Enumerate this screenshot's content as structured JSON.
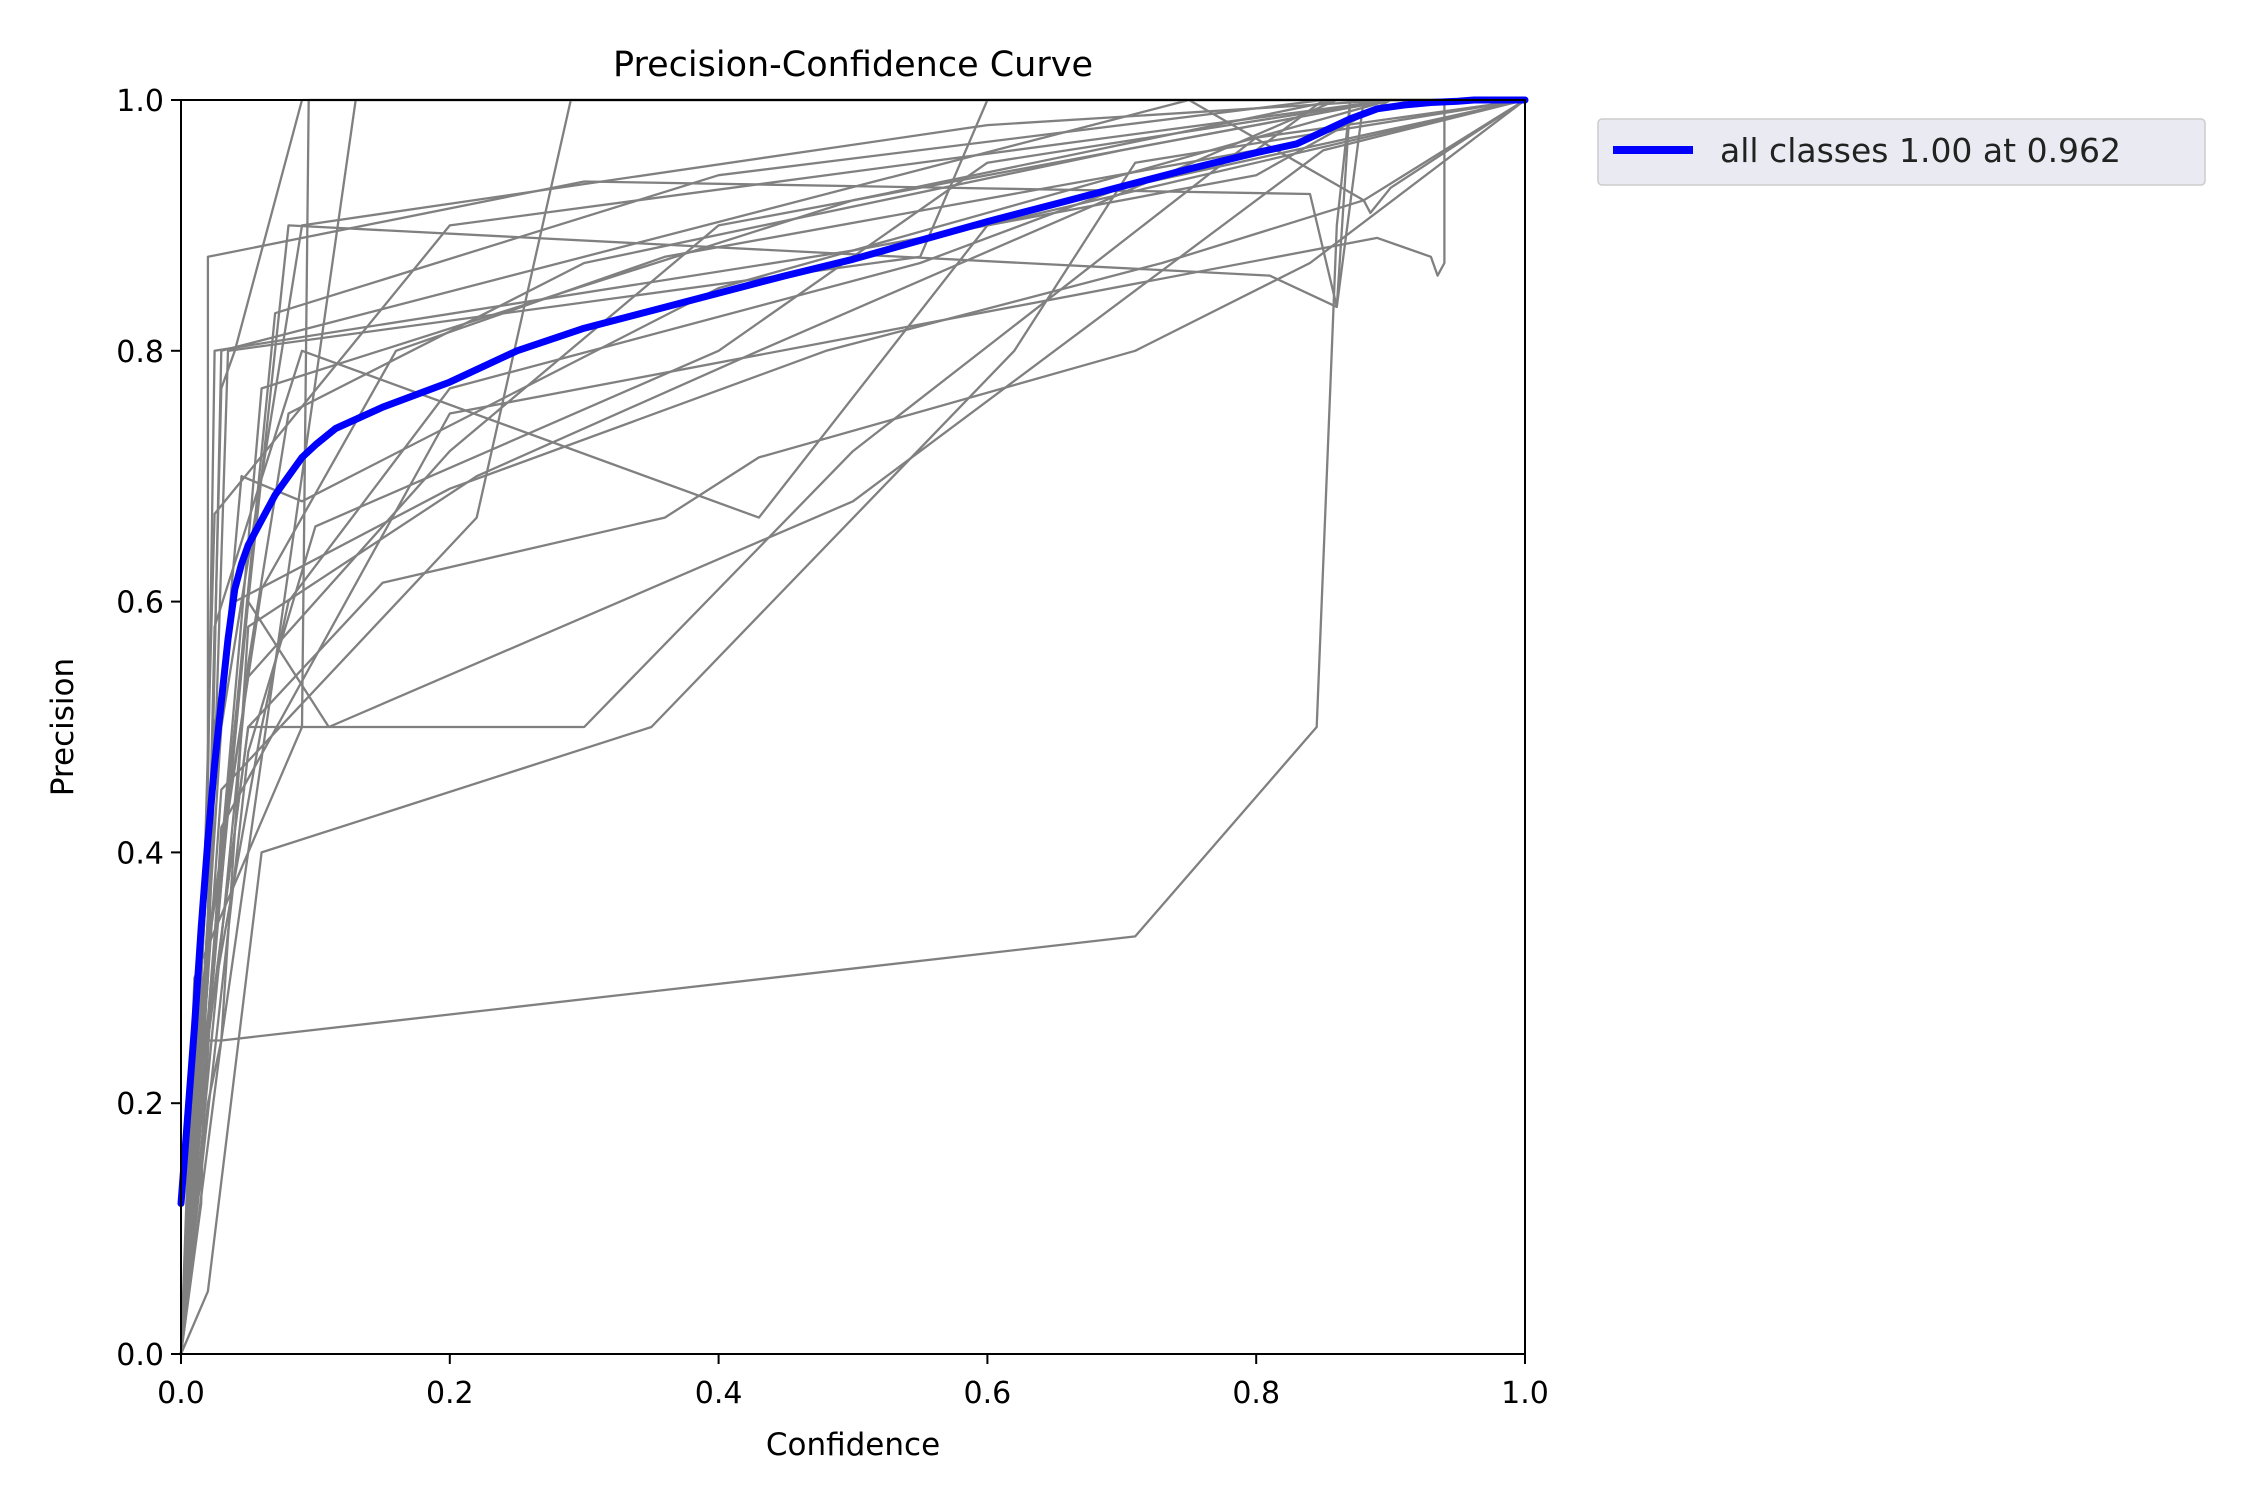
{
  "chart_data": {
    "type": "line",
    "title": "Precision-Confidence Curve",
    "xlabel": "Confidence",
    "ylabel": "Precision",
    "xlim": [
      0,
      1
    ],
    "ylim": [
      0,
      1
    ],
    "xticks": [
      "0.0",
      "0.2",
      "0.4",
      "0.6",
      "0.8",
      "1.0"
    ],
    "yticks": [
      "0.0",
      "0.2",
      "0.4",
      "0.6",
      "0.8",
      "1.0"
    ],
    "grid": false,
    "legend_position": "outside-top-right",
    "legend": [
      "all classes 1.00 at 0.962"
    ],
    "colors": {
      "class_lines": "#808080",
      "all_classes": "#0000ff"
    },
    "series": [
      {
        "name": "all classes 1.00 at 0.962",
        "emphasis": true,
        "x": [
          0.0,
          0.005,
          0.01,
          0.015,
          0.02,
          0.025,
          0.03,
          0.035,
          0.04,
          0.045,
          0.05,
          0.06,
          0.07,
          0.08,
          0.09,
          0.1,
          0.115,
          0.15,
          0.2,
          0.25,
          0.3,
          0.35,
          0.4,
          0.45,
          0.5,
          0.55,
          0.6,
          0.65,
          0.7,
          0.75,
          0.8,
          0.83,
          0.85,
          0.87,
          0.89,
          0.91,
          0.93,
          0.95,
          0.962,
          0.98,
          1.0
        ],
        "y": [
          0.12,
          0.19,
          0.26,
          0.34,
          0.41,
          0.47,
          0.52,
          0.57,
          0.61,
          0.63,
          0.645,
          0.665,
          0.685,
          0.7,
          0.715,
          0.725,
          0.738,
          0.755,
          0.775,
          0.8,
          0.818,
          0.832,
          0.846,
          0.86,
          0.873,
          0.888,
          0.903,
          0.917,
          0.931,
          0.945,
          0.958,
          0.965,
          0.975,
          0.985,
          0.993,
          0.996,
          0.998,
          0.999,
          1.0,
          1.0,
          1.0
        ]
      },
      {
        "x": [
          0.0,
          0.02,
          0.02,
          0.3,
          0.84,
          0.86,
          0.88,
          1.0
        ],
        "y": [
          0.0,
          0.4,
          0.875,
          0.935,
          0.925,
          0.835,
          1.0,
          1.0
        ]
      },
      {
        "x": [
          0.0,
          0.02,
          0.025,
          0.5,
          0.8,
          0.9,
          1.0
        ],
        "y": [
          0.0,
          0.45,
          0.8,
          0.88,
          0.94,
          1.0,
          1.0
        ]
      },
      {
        "x": [
          0.0,
          0.01,
          0.09,
          0.095,
          1.0
        ],
        "y": [
          0.0,
          0.3,
          0.5,
          1.0,
          1.0
        ]
      },
      {
        "x": [
          0.0,
          0.015,
          0.02,
          0.03,
          0.13,
          1.0
        ],
        "y": [
          0.0,
          0.2,
          0.25,
          0.25,
          1.0,
          1.0
        ]
      },
      {
        "x": [
          0.0,
          0.02,
          0.03,
          0.04,
          0.09,
          1.0
        ],
        "y": [
          0.0,
          0.35,
          0.77,
          0.8,
          1.0,
          1.0
        ]
      },
      {
        "x": [
          0.0,
          0.03,
          0.22,
          0.29,
          1.0
        ],
        "y": [
          0.0,
          0.45,
          0.667,
          1.0,
          1.0
        ]
      },
      {
        "x": [
          0.0,
          0.01,
          0.025,
          0.2,
          0.9,
          1.0
        ],
        "y": [
          0.0,
          0.1,
          0.67,
          0.9,
          1.0,
          1.0
        ]
      },
      {
        "x": [
          0.0,
          0.02,
          0.03,
          0.75,
          0.88,
          0.885,
          0.9,
          1.0
        ],
        "y": [
          0.0,
          0.3,
          0.8,
          1.0,
          0.92,
          0.91,
          0.93,
          1.0
        ]
      },
      {
        "x": [
          0.0,
          0.03,
          0.09,
          0.6,
          0.9,
          1.0
        ],
        "y": [
          0.0,
          0.5,
          0.9,
          0.98,
          1.0,
          1.0
        ]
      },
      {
        "x": [
          0.0,
          0.03,
          0.06,
          0.5,
          0.86,
          1.0
        ],
        "y": [
          0.0,
          0.4,
          0.77,
          0.92,
          1.0,
          1.0
        ]
      },
      {
        "x": [
          0.0,
          0.04,
          0.07,
          0.4,
          0.85,
          1.0
        ],
        "y": [
          0.0,
          0.5,
          0.83,
          0.94,
          1.0,
          1.0
        ]
      },
      {
        "x": [
          0.0,
          0.05,
          0.08,
          0.3,
          0.7,
          0.85,
          0.9,
          1.0
        ],
        "y": [
          0.0,
          0.55,
          0.75,
          0.87,
          0.96,
          0.99,
          1.0,
          1.0
        ]
      },
      {
        "x": [
          0.0,
          0.02,
          0.06,
          0.16,
          0.36,
          0.8,
          0.85,
          1.0
        ],
        "y": [
          0.0,
          0.33,
          0.61,
          0.8,
          0.875,
          0.96,
          1.0,
          1.0
        ]
      },
      {
        "x": [
          0.0,
          0.01,
          0.05,
          0.11,
          0.5,
          0.85,
          1.0
        ],
        "y": [
          0.0,
          0.15,
          0.6,
          0.5,
          0.68,
          0.96,
          1.0
        ]
      },
      {
        "x": [
          0.0,
          0.03,
          0.05,
          0.22,
          0.43,
          0.86,
          1.0
        ],
        "y": [
          0.0,
          0.25,
          0.58,
          0.7,
          0.8,
          1.0,
          1.0
        ]
      },
      {
        "x": [
          0.0,
          0.02,
          0.05,
          0.15,
          0.36,
          0.43,
          0.71,
          0.84,
          1.0
        ],
        "y": [
          0.0,
          0.25,
          0.5,
          0.615,
          0.667,
          0.715,
          0.8,
          0.87,
          1.0
        ]
      },
      {
        "x": [
          0.0,
          0.01,
          0.06,
          0.08,
          0.2,
          0.55,
          0.7,
          1.0
        ],
        "y": [
          0.0,
          0.2,
          0.5,
          0.6,
          0.77,
          0.87,
          0.93,
          1.0
        ]
      },
      {
        "x": [
          0.0,
          0.02,
          0.035,
          0.55,
          0.58,
          0.6,
          1.0
        ],
        "y": [
          0.0,
          0.3,
          0.8,
          0.875,
          0.95,
          1.0,
          1.0
        ]
      },
      {
        "x": [
          0.0,
          0.05,
          0.1,
          0.4,
          0.6,
          0.9,
          1.0
        ],
        "y": [
          0.0,
          0.48,
          0.66,
          0.8,
          0.95,
          1.0,
          1.0
        ]
      },
      {
        "x": [
          0.0,
          0.02,
          0.045,
          0.09,
          0.4,
          0.9,
          1.0
        ],
        "y": [
          0.0,
          0.4,
          0.7,
          0.68,
          0.85,
          1.0,
          1.0
        ]
      },
      {
        "x": [
          0.0,
          0.01,
          0.05,
          0.2,
          0.4,
          0.9,
          1.0
        ],
        "y": [
          0.0,
          0.25,
          0.54,
          0.72,
          0.9,
          1.0,
          1.0
        ]
      },
      {
        "x": [
          0.0,
          0.015,
          0.03,
          0.2,
          0.89,
          0.93,
          0.935,
          0.94,
          0.94,
          1.0
        ],
        "y": [
          0.0,
          0.15,
          0.42,
          0.75,
          0.89,
          0.875,
          0.86,
          0.87,
          1.0,
          1.0
        ]
      },
      {
        "x": [
          0.0,
          0.035,
          0.08,
          0.81,
          0.86,
          0.87,
          1.0
        ],
        "y": [
          0.0,
          0.45,
          0.9,
          0.86,
          0.835,
          1.0,
          1.0
        ]
      },
      {
        "x": [
          0.0,
          0.025,
          0.04,
          0.2,
          0.48,
          0.73,
          0.88,
          1.0
        ],
        "y": [
          0.0,
          0.5,
          0.6,
          0.69,
          0.8,
          0.87,
          0.92,
          1.0
        ]
      },
      {
        "x": [
          0.0,
          0.02,
          0.06,
          0.35,
          0.62,
          0.71,
          1.0
        ],
        "y": [
          0.0,
          0.05,
          0.4,
          0.5,
          0.8,
          0.95,
          1.0
        ]
      },
      {
        "x": [
          0.0,
          0.02,
          0.03,
          0.71,
          0.845,
          0.86,
          0.87,
          1.0
        ],
        "y": [
          0.0,
          0.2,
          0.25,
          0.333,
          0.5,
          0.9,
          1.0,
          1.0
        ]
      },
      {
        "x": [
          0.0,
          0.015,
          0.025,
          0.09,
          0.43,
          0.6,
          1.0
        ],
        "y": [
          0.0,
          0.12,
          0.58,
          0.8,
          0.667,
          0.9,
          1.0
        ]
      },
      {
        "x": [
          0.0,
          0.02,
          0.05,
          0.3,
          0.5,
          0.8,
          1.0
        ],
        "y": [
          0.0,
          0.25,
          0.5,
          0.5,
          0.72,
          0.97,
          1.0
        ]
      }
    ]
  }
}
